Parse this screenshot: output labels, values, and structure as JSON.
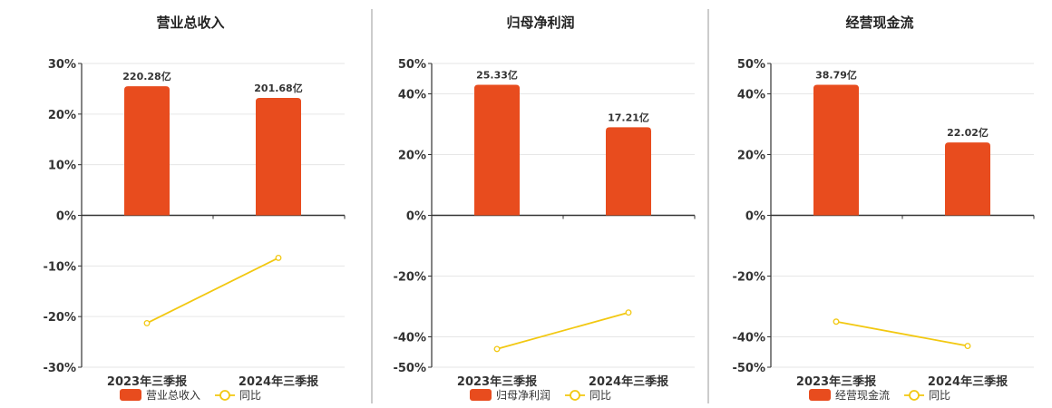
{
  "colors": {
    "bar": "#e84c1e",
    "line": "#f2c811",
    "grid": "#e6e6e6",
    "axis": "#333333",
    "divider": "#999999"
  },
  "chart_data": [
    {
      "type": "bar",
      "title": "营业总收入",
      "categories": [
        "2023年三季报",
        "2024年三季报"
      ],
      "series": [
        {
          "name": "营业总收入",
          "type": "bar",
          "values": [
            25.5,
            23.2
          ],
          "labels": [
            "220.28亿",
            "201.68亿"
          ]
        },
        {
          "name": "同比",
          "type": "line",
          "values": [
            -21.3,
            -8.4
          ]
        }
      ],
      "ylim": [
        -30,
        30
      ],
      "yticks": [
        30,
        20,
        10,
        0,
        -10,
        -20,
        -30
      ],
      "ytick_labels": [
        "30%",
        "20%",
        "10%",
        "0%",
        "-10%",
        "-20%",
        "-30%"
      ],
      "grid": true,
      "legend": "bottom"
    },
    {
      "type": "bar",
      "title": "归母净利润",
      "categories": [
        "2023年三季报",
        "2024年三季报"
      ],
      "series": [
        {
          "name": "归母净利润",
          "type": "bar",
          "values": [
            43,
            29
          ],
          "labels": [
            "25.33亿",
            "17.21亿"
          ]
        },
        {
          "name": "同比",
          "type": "line",
          "values": [
            -44.0,
            -32.0
          ]
        }
      ],
      "ylim": [
        -50,
        50
      ],
      "yticks": [
        50,
        40,
        20,
        0,
        -20,
        -40,
        -50
      ],
      "ytick_labels": [
        "50%",
        "40%",
        "20%",
        "0%",
        "-20%",
        "-40%",
        "-50%"
      ],
      "grid": true,
      "legend": "bottom"
    },
    {
      "type": "bar",
      "title": "经营现金流",
      "categories": [
        "2023年三季报",
        "2024年三季报"
      ],
      "series": [
        {
          "name": "经营现金流",
          "type": "bar",
          "values": [
            43,
            24
          ],
          "labels": [
            "38.79亿",
            "22.02亿"
          ]
        },
        {
          "name": "同比",
          "type": "line",
          "values": [
            -35.0,
            -43.0
          ]
        }
      ],
      "ylim": [
        -50,
        50
      ],
      "yticks": [
        50,
        40,
        20,
        0,
        -20,
        -40,
        -50
      ],
      "ytick_labels": [
        "50%",
        "40%",
        "20%",
        "0%",
        "-20%",
        "-40%",
        "-50%"
      ],
      "grid": true,
      "legend": "bottom"
    }
  ]
}
